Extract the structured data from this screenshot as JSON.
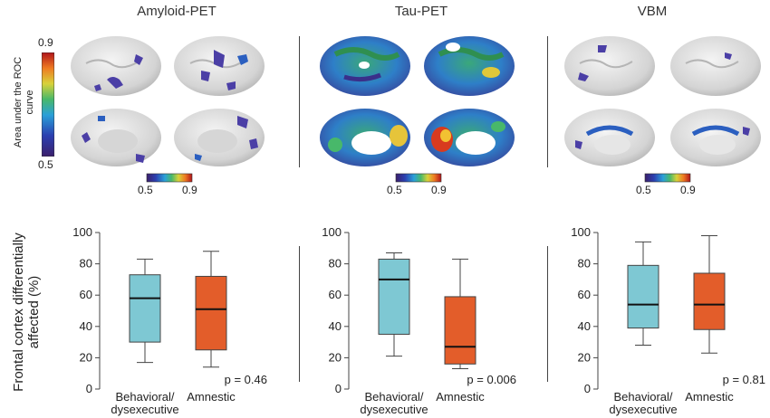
{
  "panels": [
    {
      "title": "Amyloid-PET",
      "colorbar_min": "0.5",
      "colorbar_max": "0.9"
    },
    {
      "title": "Tau-PET",
      "colorbar_min": "0.5",
      "colorbar_max": "0.9"
    },
    {
      "title": "VBM",
      "colorbar_min": "0.5",
      "colorbar_max": "0.9"
    }
  ],
  "main_colorbar": {
    "title": "Area under the ROC curve",
    "max": "0.9",
    "min": "0.5"
  },
  "colors": {
    "behavioral": "#7ec8d3",
    "amnestic": "#e35d2a"
  },
  "chart_data": [
    {
      "type": "box",
      "title": "Amyloid-PET",
      "ylabel": "Frontal cortex differentially affected (%)",
      "ylim": [
        0,
        100
      ],
      "yticks": [
        "0",
        "20",
        "40",
        "60",
        "80",
        "100"
      ],
      "categories": [
        "Behavioral/ dysexecutive",
        "Amnestic"
      ],
      "boxes": [
        {
          "min": 17,
          "q1": 30,
          "median": 58,
          "q3": 73,
          "max": 83
        },
        {
          "min": 14,
          "q1": 25,
          "median": 51,
          "q3": 72,
          "max": 88
        }
      ],
      "p_value": "p = 0.46"
    },
    {
      "type": "box",
      "title": "Tau-PET",
      "ylabel": "Frontal cortex differentially affected (%)",
      "ylim": [
        0,
        100
      ],
      "yticks": [
        "0",
        "20",
        "40",
        "60",
        "80",
        "100"
      ],
      "categories": [
        "Behavioral/ dysexecutive",
        "Amnestic"
      ],
      "boxes": [
        {
          "min": 21,
          "q1": 35,
          "median": 70,
          "q3": 83,
          "max": 87
        },
        {
          "min": 13,
          "q1": 16,
          "median": 27,
          "q3": 59,
          "max": 83
        }
      ],
      "p_value": "p = 0.006"
    },
    {
      "type": "box",
      "title": "VBM",
      "ylabel": "Frontal cortex differentially affected (%)",
      "ylim": [
        0,
        100
      ],
      "yticks": [
        "0",
        "20",
        "40",
        "60",
        "80",
        "100"
      ],
      "categories": [
        "Behavioral/ dysexecutive",
        "Amnestic"
      ],
      "boxes": [
        {
          "min": 28,
          "q1": 39,
          "median": 54,
          "q3": 79,
          "max": 94
        },
        {
          "min": 23,
          "q1": 38,
          "median": 54,
          "q3": 74,
          "max": 98
        }
      ],
      "p_value": "p = 0.81"
    }
  ]
}
